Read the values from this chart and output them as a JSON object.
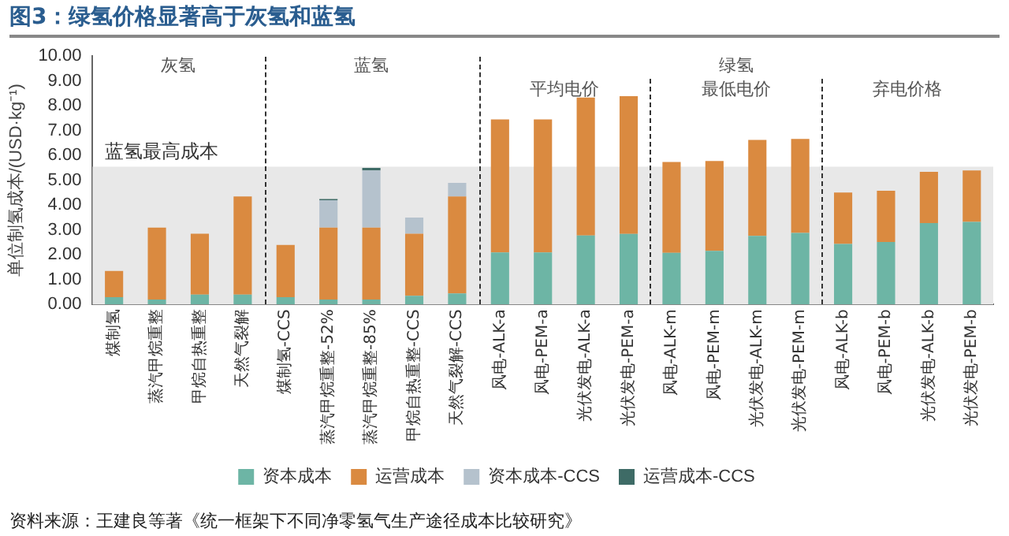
{
  "chart_data": {
    "type": "bar",
    "title": "图3：绿氢价格显著高于灰氢和蓝氢",
    "ylabel": "单位制氢成本/(USD·kg⁻¹)",
    "stacked": true,
    "categories": [
      "煤制氢",
      "蒸汽甲烷重整",
      "甲烷自热重整",
      "天然气裂解",
      "煤制氢-CCS",
      "蒸汽甲烷重整-52%",
      "蒸汽甲烷重整-85%",
      "甲烷自热重整-CCS",
      "天然气裂解-CCS",
      "风电-ALK-a",
      "风电-PEM-a",
      "光伏发电-ALK-a",
      "光伏发电-PEM-a",
      "风电-ALK-m",
      "风电-PEM-m",
      "光伏发电-ALK-m",
      "光伏发电-PEM-m",
      "风电-ALK-b",
      "风电-PEM-b",
      "光伏发电-ALK-b",
      "光伏发电-PEM-b"
    ],
    "series": [
      {
        "name": "资本成本",
        "color": "#6db5a5",
        "values": [
          0.3,
          0.2,
          0.4,
          0.4,
          0.3,
          0.2,
          0.2,
          0.35,
          0.45,
          2.1,
          2.1,
          2.78,
          2.84,
          2.08,
          2.16,
          2.76,
          2.88,
          2.44,
          2.52,
          3.28,
          3.33
        ]
      },
      {
        "name": "运营成本",
        "color": "#da8a40",
        "values": [
          1.05,
          2.9,
          2.45,
          3.95,
          2.1,
          2.9,
          2.9,
          2.5,
          3.9,
          5.35,
          5.35,
          5.55,
          5.55,
          3.66,
          3.62,
          3.87,
          3.79,
          2.07,
          2.06,
          2.06,
          2.07
        ]
      },
      {
        "name": "资本成本-CCS",
        "color": "#b5c2cd",
        "values": [
          null,
          null,
          null,
          null,
          null,
          1.1,
          2.3,
          0.65,
          0.55,
          null,
          null,
          null,
          null,
          null,
          null,
          null,
          null,
          null,
          null,
          null,
          null
        ]
      },
      {
        "name": "运营成本-CCS",
        "color": "#3e6b66",
        "values": [
          null,
          null,
          null,
          null,
          null,
          0.05,
          0.1,
          null,
          null,
          null,
          null,
          null,
          null,
          null,
          null,
          null,
          null,
          null,
          null,
          null,
          null
        ]
      }
    ],
    "ylim": [
      0,
      10
    ],
    "yticks": [
      {
        "value": 0,
        "label": "0.00"
      },
      {
        "value": 1,
        "label": "1.00"
      },
      {
        "value": 2,
        "label": "2.00"
      },
      {
        "value": 3,
        "label": "3.00"
      },
      {
        "value": 4,
        "label": "4.00"
      },
      {
        "value": 5,
        "label": "5.00"
      },
      {
        "value": 6,
        "label": "6.00"
      },
      {
        "value": 7,
        "label": "7.00"
      },
      {
        "value": 8,
        "label": "8.00"
      },
      {
        "value": 9,
        "label": "9.00"
      },
      {
        "value": 10,
        "label": "10.00"
      }
    ],
    "bands": [
      {
        "axis": "y",
        "from": 0,
        "to": 5.55,
        "label": "蓝氢最高成本",
        "color": "#e8e8e8"
      }
    ],
    "grid": false,
    "legend": "bottom",
    "annotations": [
      "资料来源：王建良等著《统一框架下不同净零氢气生产途径成本比较研究》",
      "灰氢",
      "蓝氢",
      "绿氢",
      "平均电价",
      "最低电价",
      "弃电价格"
    ]
  }
}
